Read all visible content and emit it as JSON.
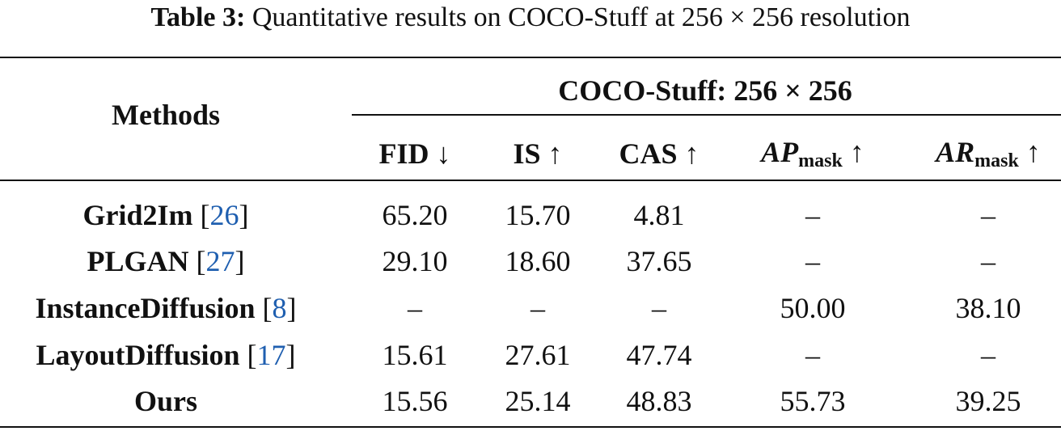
{
  "caption": {
    "label": "Table 3:",
    "text": "Quantitative results on COCO-Stuff at 256 × 256 resolution"
  },
  "table": {
    "header": {
      "methods": "Methods",
      "group": "COCO-Stuff: 256 × 256",
      "columns": [
        {
          "main": "FID",
          "sub": "",
          "arrow": "↓"
        },
        {
          "main": "IS",
          "sub": "",
          "arrow": "↑"
        },
        {
          "main": "CAS",
          "sub": "",
          "arrow": "↑"
        },
        {
          "main": "AP",
          "sub": "mask",
          "arrow": "↑"
        },
        {
          "main": "AR",
          "sub": "mask",
          "arrow": "↑"
        }
      ]
    },
    "rows": [
      {
        "method": "Grid2Im",
        "ref": {
          "open": "[",
          "number": "26",
          "close": "]"
        },
        "values": [
          "65.20",
          "15.70",
          "4.81",
          "–",
          "–"
        ]
      },
      {
        "method": "PLGAN",
        "ref": {
          "open": "[",
          "number": "27",
          "close": "]"
        },
        "values": [
          "29.10",
          "18.60",
          "37.65",
          "–",
          "–"
        ]
      },
      {
        "method": "InstanceDiffusion",
        "ref": {
          "open": "[",
          "number": "8",
          "close": "]"
        },
        "values": [
          "–",
          "–",
          "–",
          "50.00",
          "38.10"
        ]
      },
      {
        "method": "LayoutDiffusion",
        "ref": {
          "open": "[",
          "number": "17",
          "close": "]"
        },
        "values": [
          "15.61",
          "27.61",
          "47.74",
          "–",
          "–"
        ]
      },
      {
        "method": "Ours",
        "ref": null,
        "values": [
          "15.56",
          "25.14",
          "48.83",
          "55.73",
          "39.25"
        ]
      }
    ]
  }
}
